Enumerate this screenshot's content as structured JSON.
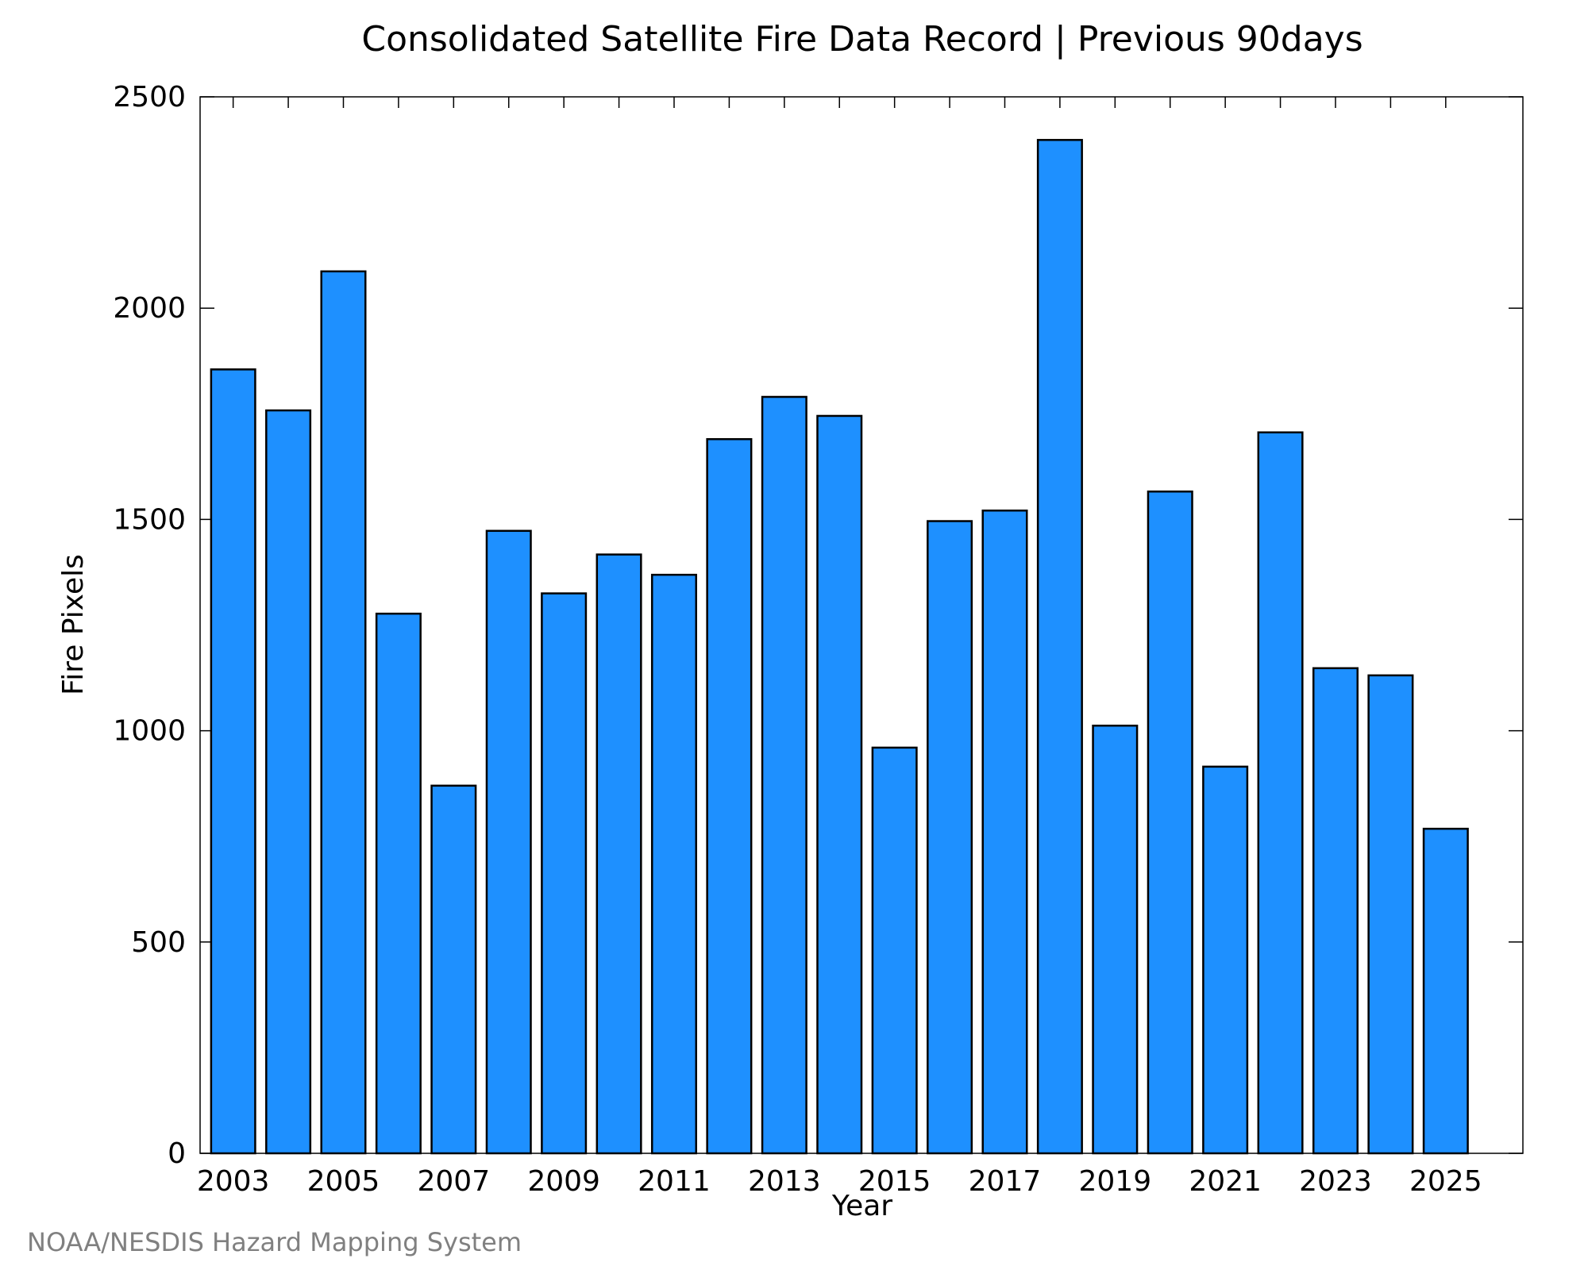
{
  "chart_data": {
    "type": "bar",
    "title": "Consolidated Satellite Fire Data Record | Previous 90days",
    "xlabel": "Year",
    "ylabel": "Fire Pixels",
    "categories": [
      2003,
      2004,
      2005,
      2006,
      2007,
      2008,
      2009,
      2010,
      2011,
      2012,
      2013,
      2014,
      2015,
      2016,
      2017,
      2018,
      2019,
      2020,
      2021,
      2022,
      2023,
      2024,
      2025
    ],
    "values": [
      1855,
      1758,
      2087,
      1277,
      870,
      1473,
      1325,
      1417,
      1369,
      1690,
      1790,
      1745,
      960,
      1496,
      1521,
      2398,
      1012,
      1566,
      915,
      1706,
      1148,
      1131,
      768
    ],
    "xticks": [
      "2003",
      "2005",
      "2007",
      "2009",
      "2011",
      "2013",
      "2015",
      "2017",
      "2019",
      "2021",
      "2023",
      "2025"
    ],
    "yticks": [
      "0",
      "500",
      "1000",
      "1500",
      "2000",
      "2500"
    ],
    "ylim": [
      0,
      2500
    ],
    "bar_color": "#1e90ff",
    "bar_edge_color": "#000000",
    "grid": false,
    "legend": "none"
  },
  "credit": "NOAA/NESDIS Hazard Mapping System"
}
